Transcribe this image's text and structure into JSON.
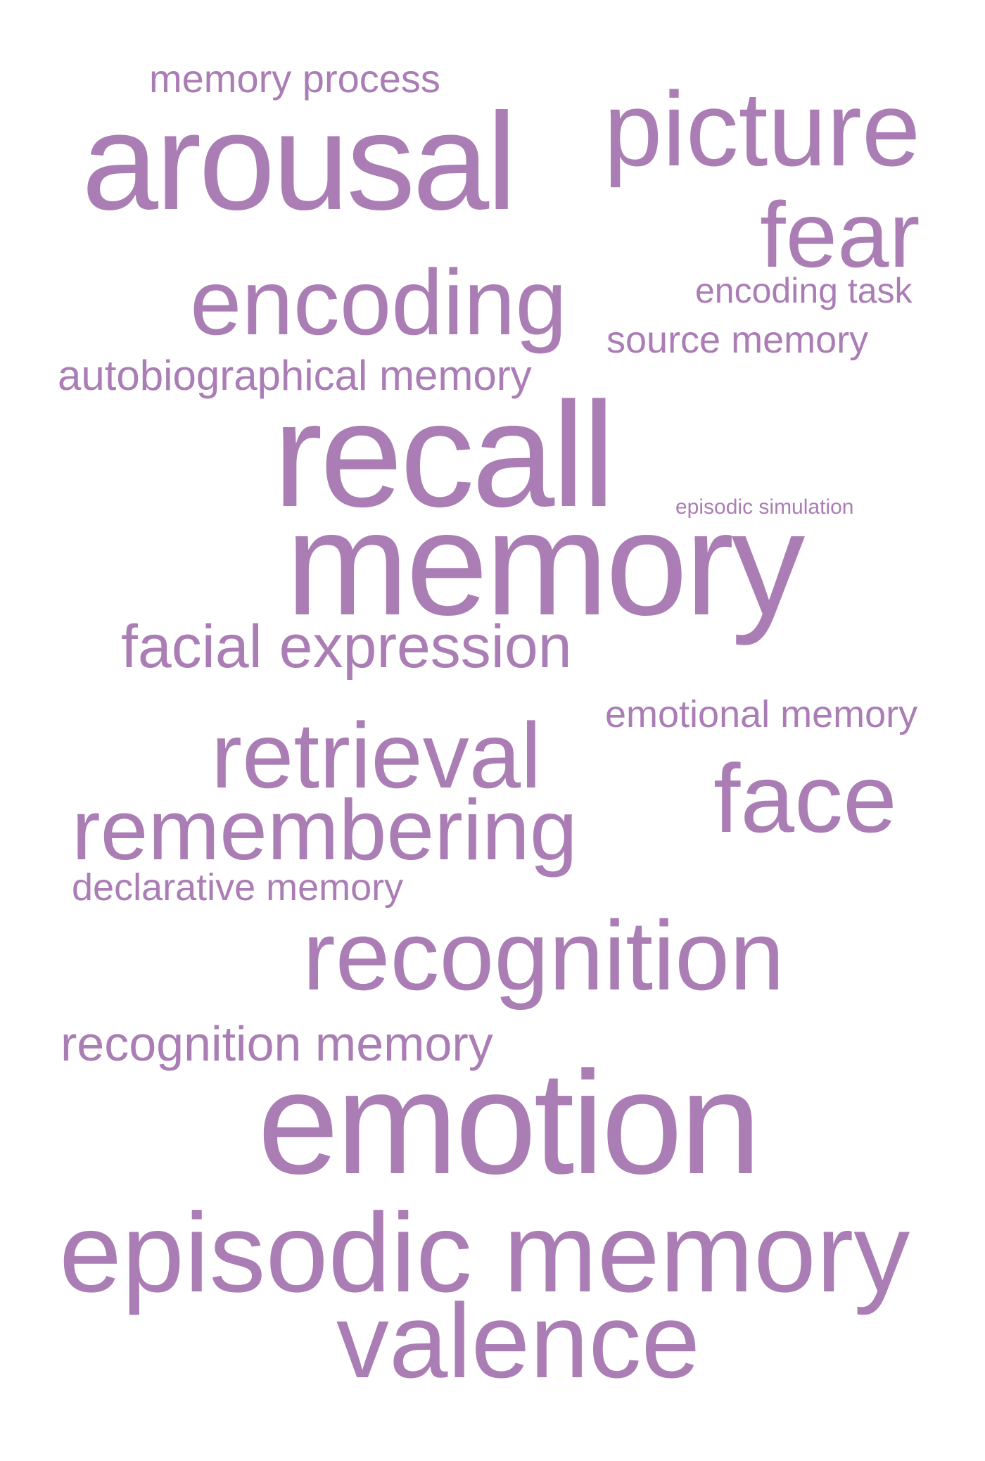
{
  "cloud": {
    "color": "#ab7db5",
    "words": {
      "memory_process": "memory process",
      "arousal": "arousal",
      "picture": "picture",
      "fear": "fear",
      "encoding": "encoding",
      "encoding_task": "encoding task",
      "source_memory": "source memory",
      "autobiographical_memory": "autobiographical memory",
      "recall": "recall",
      "episodic_simulation": "episodic simulation",
      "memory": "memory",
      "facial_expression": "facial expression",
      "emotional_memory": "emotional memory",
      "retrieval": "retrieval",
      "face": "face",
      "remembering": "remembering",
      "declarative_memory": "declarative memory",
      "recognition": "recognition",
      "recognition_memory": "recognition memory",
      "emotion": "emotion",
      "episodic_memory": "episodic memory",
      "valence": "valence"
    }
  }
}
